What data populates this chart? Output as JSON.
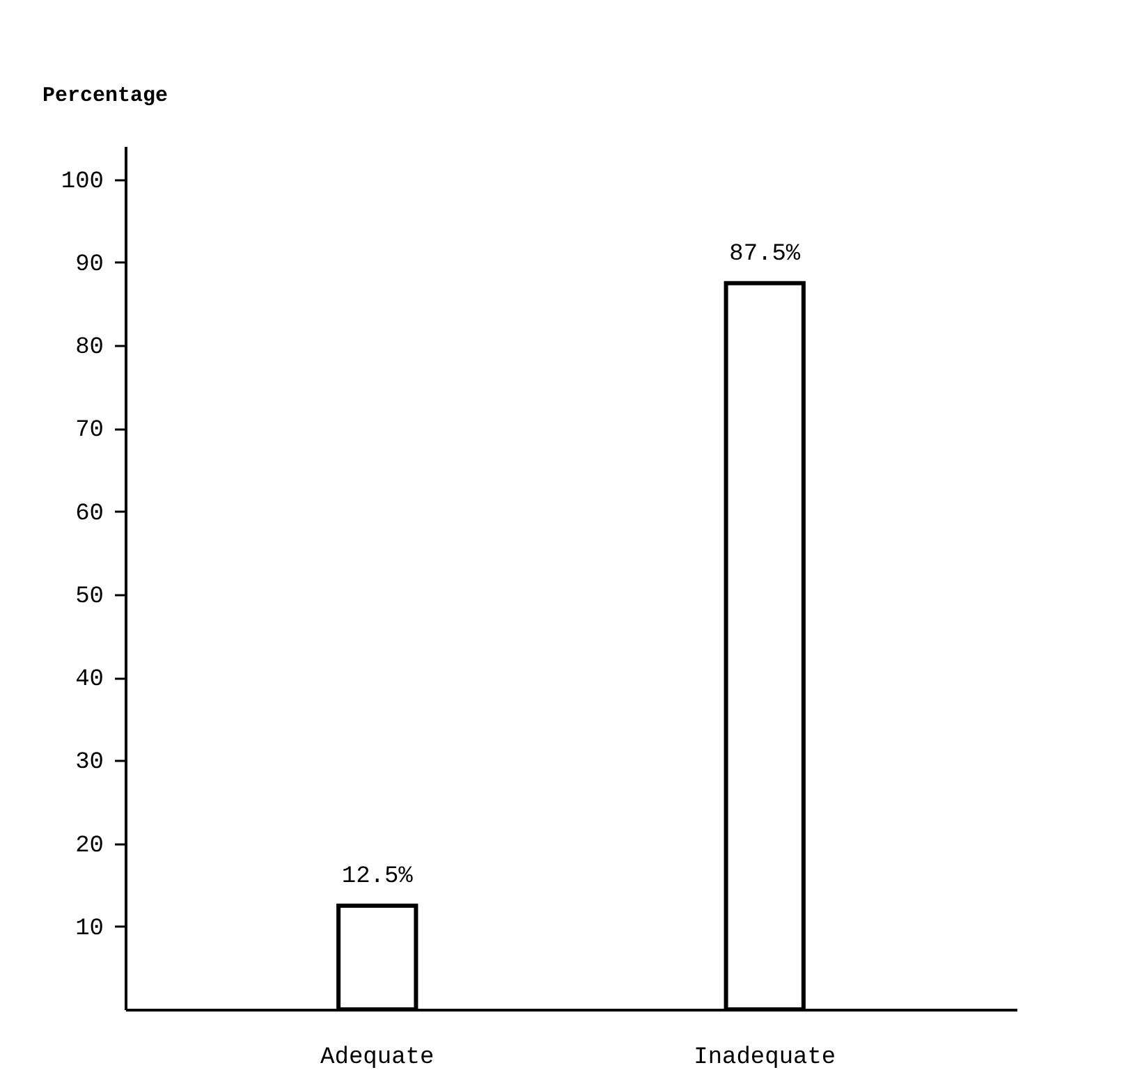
{
  "chart_data": {
    "type": "bar",
    "ylabel": "Percentage",
    "categories": [
      "Adequate",
      "Inadequate"
    ],
    "values": [
      12.5,
      87.5
    ],
    "value_labels": [
      "12.5%",
      "87.5%"
    ],
    "color": "#ffffff",
    "ylim": [
      0,
      104
    ],
    "yticks": [
      10,
      20,
      30,
      40,
      50,
      60,
      70,
      80,
      90,
      100
    ],
    "grid": false
  }
}
